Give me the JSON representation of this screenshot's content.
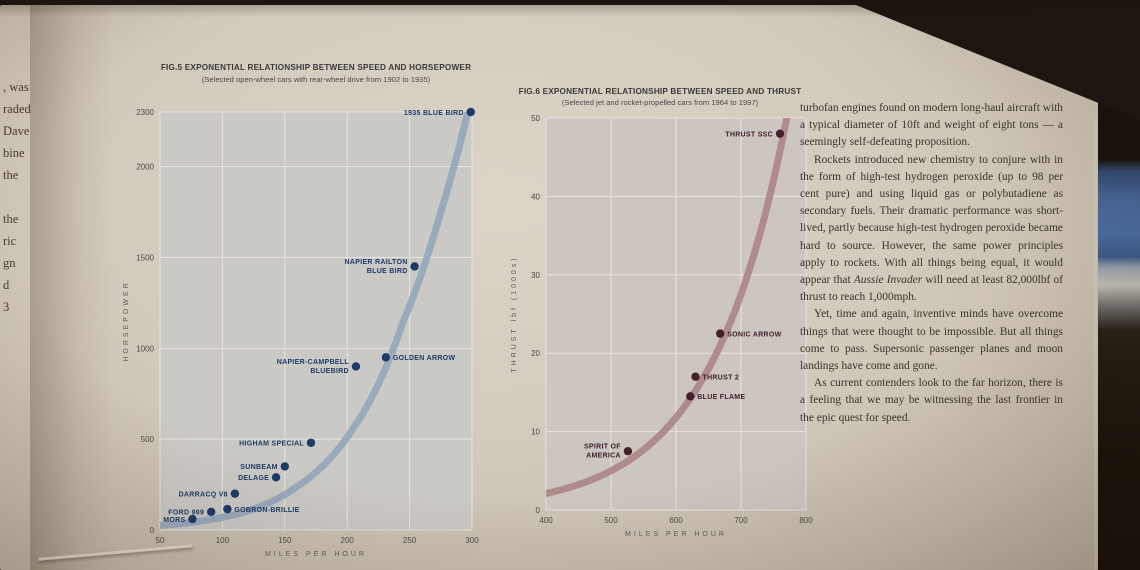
{
  "page": {
    "left_margin_fragments": [
      ", was",
      "raded",
      "Dave",
      "bine",
      "the",
      "",
      "the",
      "ric",
      "gn",
      "d",
      "3"
    ],
    "article": {
      "paragraphs": [
        [
          {
            "text": "turbofan engines found on modern long-haul aircraft with a typical diameter of 10ft and weight of eight tons — a seemingly self-defeating proposition."
          }
        ],
        [
          {
            "text": "Rockets introduced new chemistry to conjure with in the form of high-test hydrogen peroxide (up to 98 per cent pure) and using liquid gas or polybutadiene as secondary fuels. Their dramatic performance was short-lived, partly because high-test hydrogen peroxide became hard to source. However, the same power principles apply to rockets. With all things being equal, it would appear that "
          },
          {
            "text": "Aussie Invader",
            "italic": true
          },
          {
            "text": " will need at least 82,000lbf of thrust to reach 1,000mph."
          }
        ],
        [
          {
            "text": "Yet, time and again, inventive minds have overcome things that were thought to be impossible. But all things come to pass. Supersonic passenger planes and moon landings have come and gone."
          }
        ],
        [
          {
            "text": "As current contenders look to the far horizon, there is a feeling that we may be witnessing the last frontier in the epic quest for speed."
          }
        ]
      ]
    }
  },
  "chart_data": [
    {
      "id": "fig5",
      "type": "scatter",
      "title": "FIG.5 EXPONENTIAL RELATIONSHIP BETWEEN SPEED AND HORSEPOWER",
      "subtitle": "(Selected open-wheel cars with rear-wheel drive from 1902 to 1935)",
      "xlabel": "MILES PER HOUR",
      "ylabel": "HORSEPOWER",
      "xlim": [
        50,
        300
      ],
      "ylim": [
        0,
        2300
      ],
      "xticks": [
        50,
        100,
        150,
        200,
        250,
        300
      ],
      "yticks": [
        0,
        500,
        1000,
        1500,
        2000,
        2300
      ],
      "grid": true,
      "curve_color": "#93a6bb",
      "dot_color": "#1d3a68",
      "label_color": "#1d3a68",
      "curve_anchors": [
        [
          50,
          25
        ],
        [
          110,
          85
        ],
        [
          160,
          240
        ],
        [
          205,
          560
        ],
        [
          245,
          1150
        ],
        [
          275,
          1750
        ],
        [
          300,
          2400
        ]
      ],
      "points": [
        {
          "label": "MORS",
          "x": 76,
          "y": 60,
          "side": "left"
        },
        {
          "label": "FORD 999",
          "x": 91,
          "y": 100,
          "side": "left"
        },
        {
          "label": "GOBRON-BRILLIE",
          "x": 104,
          "y": 115,
          "side": "right"
        },
        {
          "label": "DARRACQ V8",
          "x": 110,
          "y": 200,
          "side": "left"
        },
        {
          "label": "DELAGE",
          "x": 143,
          "y": 290,
          "side": "left"
        },
        {
          "label": "SUNBEAM",
          "x": 150,
          "y": 350,
          "side": "left"
        },
        {
          "label": "HIGHAM SPECIAL",
          "x": 171,
          "y": 480,
          "side": "left"
        },
        {
          "label": "NAPIER-CAMPBELL\nBLUEBIRD",
          "x": 207,
          "y": 900,
          "side": "left"
        },
        {
          "label": "GOLDEN ARROW",
          "x": 231,
          "y": 950,
          "side": "right"
        },
        {
          "label": "NAPIER RAILTON\nBLUE BIRD",
          "x": 254,
          "y": 1450,
          "side": "left"
        },
        {
          "label": "1935 BLUE BIRD",
          "x": 299,
          "y": 2300,
          "side": "left"
        }
      ]
    },
    {
      "id": "fig6",
      "type": "scatter",
      "title": "FIG.6 EXPONENTIAL RELATIONSHIP BETWEEN SPEED AND THRUST",
      "subtitle": "(Selected jet and rocket-propelled cars from 1964 to 1997)",
      "xlabel": "MILES PER HOUR",
      "ylabel": "THRUST lbf (1000s)",
      "xlim": [
        400,
        800
      ],
      "ylim": [
        0,
        50
      ],
      "xticks": [
        400,
        500,
        600,
        700,
        800
      ],
      "yticks": [
        0,
        10,
        20,
        30,
        40,
        50
      ],
      "grid": true,
      "curve_color": "#ad8486",
      "dot_color": "#44202a",
      "label_color": "#3c2027",
      "curve_anchors": [
        [
          400,
          2.1
        ],
        [
          500,
          5
        ],
        [
          600,
          11.8
        ],
        [
          700,
          27.5
        ],
        [
          775,
          52
        ]
      ],
      "points": [
        {
          "label": "SPIRIT OF\nAMERICA",
          "x": 526,
          "y": 7.5,
          "side": "left"
        },
        {
          "label": "BLUE FLAME",
          "x": 622,
          "y": 14.5,
          "side": "right"
        },
        {
          "label": "THRUST 2",
          "x": 630,
          "y": 17,
          "side": "right"
        },
        {
          "label": "SONIC ARROW",
          "x": 668,
          "y": 22.5,
          "side": "right"
        },
        {
          "label": "THRUST SSC",
          "x": 760,
          "y": 48,
          "side": "left"
        }
      ]
    }
  ]
}
